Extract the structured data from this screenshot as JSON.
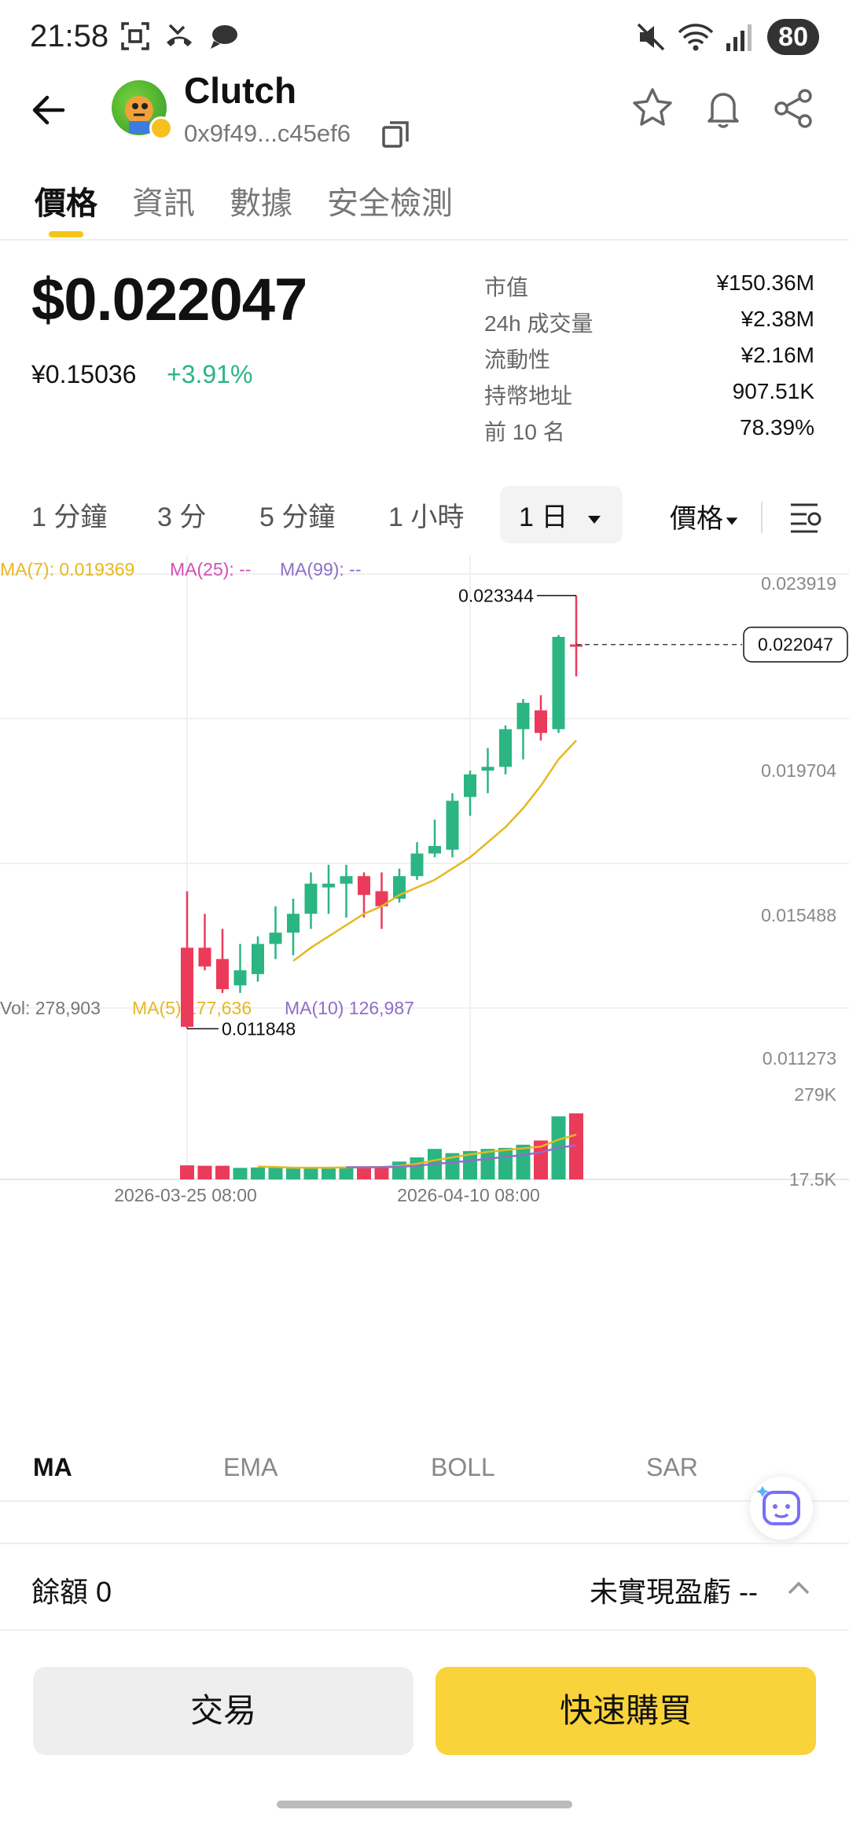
{
  "status_bar": {
    "time": "21:58",
    "battery": "80",
    "icons": [
      "scan-icon",
      "missed-call-icon",
      "chat-icon",
      "mute-icon",
      "wifi-icon",
      "signal-icon"
    ]
  },
  "header": {
    "title": "Clutch",
    "address": "0x9f49...c45ef6"
  },
  "tabs": [
    {
      "label": "價格",
      "active": true
    },
    {
      "label": "資訊"
    },
    {
      "label": "數據"
    },
    {
      "label": "安全檢測"
    }
  ],
  "price": {
    "usd": "$0.022047",
    "cny": "¥0.15036",
    "change": "+3.91%"
  },
  "stats": [
    {
      "label": "市值",
      "value": "¥150.36M"
    },
    {
      "label": "24h 成交量",
      "value": "¥2.38M"
    },
    {
      "label": "流動性",
      "value": "¥2.16M"
    },
    {
      "label": "持幣地址",
      "value": "907.51K"
    },
    {
      "label": "前 10 名",
      "value": "78.39%"
    }
  ],
  "timeframes": [
    {
      "label": "1 分鐘"
    },
    {
      "label": "3 分"
    },
    {
      "label": "5 分鐘"
    },
    {
      "label": "1 小時"
    },
    {
      "label": "1 日",
      "active": true
    }
  ],
  "chart_mode": "價格",
  "chart_data": {
    "type": "candlestick",
    "ma_legend": {
      "ma7": "MA(7): 0.019369",
      "ma25": "MA(25): --",
      "ma99": "MA(99): --"
    },
    "vol_legend": {
      "vol": "Vol: 278,903",
      "ma5": "MA(5) 177,636",
      "ma10": "MA(10) 126,987"
    },
    "y_ticks": [
      "0.023919",
      "0.019704",
      "0.015488",
      "0.011273"
    ],
    "y_range": [
      0.011273,
      0.023919
    ],
    "vol_ticks": [
      "279K",
      "17.5K"
    ],
    "vol_range": [
      17500,
      279000
    ],
    "x_ticks": [
      {
        "label": "2026-03-25 08:00",
        "index": 0
      },
      {
        "label": "2026-04-10 08:00",
        "index": 16
      }
    ],
    "high_label": "0.023344",
    "low_label": "0.011848",
    "current_price": "0.022047",
    "candles": [
      {
        "o": 0.014,
        "h": 0.0155,
        "l": 0.01185,
        "c": 0.0119,
        "v": 32000
      },
      {
        "o": 0.014,
        "h": 0.0149,
        "l": 0.0134,
        "c": 0.0135,
        "v": 30000
      },
      {
        "o": 0.0137,
        "h": 0.0145,
        "l": 0.0128,
        "c": 0.0129,
        "v": 30000
      },
      {
        "o": 0.013,
        "h": 0.0141,
        "l": 0.0128,
        "c": 0.0134,
        "v": 20000
      },
      {
        "o": 0.0133,
        "h": 0.0143,
        "l": 0.0131,
        "c": 0.0141,
        "v": 22000
      },
      {
        "o": 0.0141,
        "h": 0.0151,
        "l": 0.0137,
        "c": 0.0144,
        "v": 20000
      },
      {
        "o": 0.0144,
        "h": 0.0153,
        "l": 0.0138,
        "c": 0.0149,
        "v": 20000
      },
      {
        "o": 0.0149,
        "h": 0.016,
        "l": 0.0145,
        "c": 0.0157,
        "v": 21000
      },
      {
        "o": 0.0156,
        "h": 0.0162,
        "l": 0.0149,
        "c": 0.0157,
        "v": 22000
      },
      {
        "o": 0.0157,
        "h": 0.0162,
        "l": 0.0148,
        "c": 0.0159,
        "v": 24000
      },
      {
        "o": 0.0159,
        "h": 0.016,
        "l": 0.0148,
        "c": 0.0154,
        "v": 25000
      },
      {
        "o": 0.0155,
        "h": 0.016,
        "l": 0.0145,
        "c": 0.0151,
        "v": 26000
      },
      {
        "o": 0.0153,
        "h": 0.0161,
        "l": 0.0152,
        "c": 0.0159,
        "v": 50000
      },
      {
        "o": 0.0159,
        "h": 0.0168,
        "l": 0.0158,
        "c": 0.0165,
        "v": 70000
      },
      {
        "o": 0.0165,
        "h": 0.0174,
        "l": 0.0164,
        "c": 0.0167,
        "v": 110000
      },
      {
        "o": 0.0166,
        "h": 0.0181,
        "l": 0.0164,
        "c": 0.0179,
        "v": 90000
      },
      {
        "o": 0.018,
        "h": 0.0187,
        "l": 0.0175,
        "c": 0.0186,
        "v": 100000
      },
      {
        "o": 0.0187,
        "h": 0.0193,
        "l": 0.0181,
        "c": 0.0188,
        "v": 110000
      },
      {
        "o": 0.0188,
        "h": 0.0199,
        "l": 0.0186,
        "c": 0.0198,
        "v": 115000
      },
      {
        "o": 0.0198,
        "h": 0.0206,
        "l": 0.019,
        "c": 0.0205,
        "v": 130000
      },
      {
        "o": 0.0203,
        "h": 0.0207,
        "l": 0.0195,
        "c": 0.0197,
        "v": 150000
      },
      {
        "o": 0.0198,
        "h": 0.0223,
        "l": 0.0197,
        "c": 0.02225,
        "v": 265000
      },
      {
        "o": 0.02205,
        "h": 0.023344,
        "l": 0.0212,
        "c": 0.022047,
        "v": 278903
      }
    ],
    "ma7": [
      null,
      null,
      null,
      null,
      null,
      null,
      0.01365,
      0.014,
      0.0143,
      0.0146,
      0.0149,
      0.0151,
      0.0154,
      0.0156,
      0.0158,
      0.0161,
      0.0164,
      0.0168,
      0.0172,
      0.0177,
      0.0183,
      0.019,
      0.0195
    ],
    "vol_ma5": [
      null,
      null,
      null,
      null,
      26000,
      24000,
      21000,
      21000,
      21000,
      22000,
      23000,
      24000,
      29000,
      39000,
      56000,
      70000,
      84000,
      96000,
      105000,
      113000,
      121000,
      154000,
      178000
    ],
    "vol_ma10": [
      null,
      null,
      null,
      null,
      null,
      null,
      null,
      null,
      null,
      23000,
      23000,
      23000,
      25000,
      30000,
      39000,
      46000,
      54000,
      63000,
      72000,
      81000,
      94000,
      116000,
      127000
    ]
  },
  "indicators": [
    {
      "label": "MA",
      "active": true
    },
    {
      "label": "EMA"
    },
    {
      "label": "BOLL"
    },
    {
      "label": "SAR"
    }
  ],
  "balance": {
    "label": "餘額 0",
    "pnl": "未實現盈虧 --"
  },
  "buttons": {
    "trade": "交易",
    "quick_buy": "快速購買"
  },
  "colors": {
    "up": "#2bb583",
    "down": "#eb3b5a",
    "ma7": "#e6b820",
    "ma25": "#d34fb8",
    "ma99": "#8e6fc7",
    "accent": "#f5c518"
  }
}
